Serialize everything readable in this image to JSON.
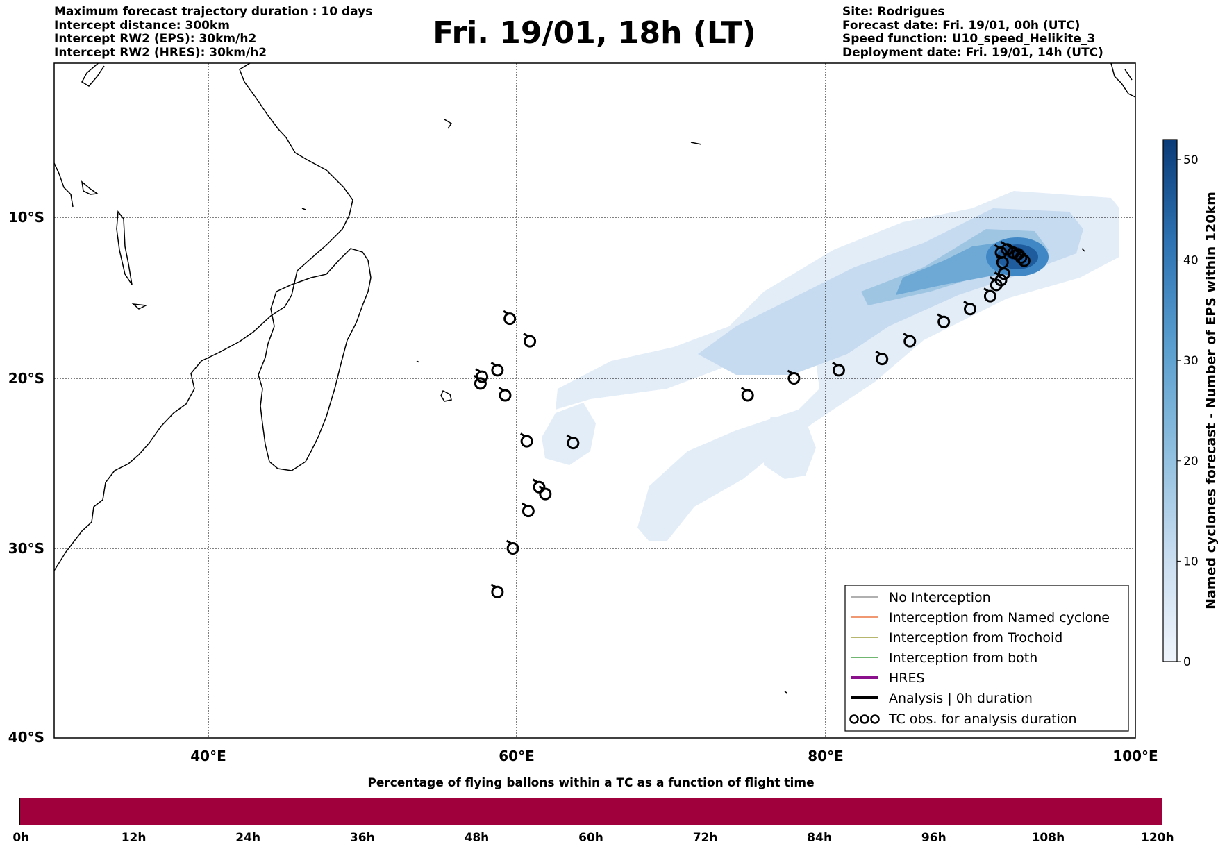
{
  "header_left": {
    "line1": "Maximum forecast trajectory duration : 10 days",
    "line2": "Intercept distance: 300km",
    "line3": "Intercept RW2 (EPS):  30km/h2",
    "line4": "Intercept RW2 (HRES): 30km/h2"
  },
  "title": "Fri. 19/01, 18h (LT)",
  "header_right": {
    "site": "Site: Rodrigues",
    "forecast": "Forecast date: Fri. 19/01, 00h (UTC)",
    "speed": "Speed function: U10_speed_Helikite_3",
    "deployment": "Deployment date: Fri. 19/01, 14h (UTC)"
  },
  "map": {
    "lon_range": [
      30,
      100
    ],
    "lat_range": [
      0,
      -40
    ],
    "grid": true,
    "lat_ticks": [
      "10°S",
      "20°S",
      "30°S",
      "40°S"
    ],
    "lon_ticks": [
      "40°E",
      "60°E",
      "80°E",
      "100°E"
    ],
    "cyclone_density_cmap": "Blues",
    "tc_obs_points": [
      [
        59.5,
        -16.3
      ],
      [
        60.8,
        -17.7
      ],
      [
        57.7,
        -19.9
      ],
      [
        57.6,
        -20.3
      ],
      [
        58.7,
        -19.5
      ],
      [
        59.2,
        -21.0
      ],
      [
        60.6,
        -23.7
      ],
      [
        63.6,
        -23.8
      ],
      [
        61.4,
        -26.4
      ],
      [
        61.8,
        -26.8
      ],
      [
        60.7,
        -27.8
      ],
      [
        59.7,
        -30.0
      ],
      [
        58.7,
        -32.3
      ],
      [
        74.9,
        -21.0
      ],
      [
        77.9,
        -20.0
      ],
      [
        80.8,
        -19.5
      ],
      [
        83.6,
        -18.8
      ],
      [
        85.4,
        -17.7
      ],
      [
        87.6,
        -16.5
      ],
      [
        89.3,
        -15.7
      ],
      [
        90.6,
        -14.9
      ],
      [
        91.0,
        -14.2
      ],
      [
        91.3,
        -13.9
      ],
      [
        91.5,
        -13.5
      ],
      [
        91.4,
        -12.8
      ],
      [
        91.3,
        -12.2
      ],
      [
        91.7,
        -12.0
      ],
      [
        92.1,
        -12.2
      ],
      [
        92.4,
        -12.3
      ],
      [
        92.6,
        -12.5
      ],
      [
        92.8,
        -12.7
      ]
    ]
  },
  "legend": {
    "items": [
      {
        "label": "No Interception",
        "color": "#808080",
        "width": 1.2
      },
      {
        "label": "Interception from Named cyclone",
        "color": "#e55a1c",
        "width": 1.2
      },
      {
        "label": "Interception from Trochoid",
        "color": "#8a8a18",
        "width": 1.2
      },
      {
        "label": "Interception from both",
        "color": "#1a8a1a",
        "width": 1.2
      },
      {
        "label": "HRES",
        "color": "#8b108b",
        "width": 4
      },
      {
        "label": "Analysis | 0h duration",
        "color": "#000000",
        "width": 4
      }
    ],
    "tc_label": "TC obs. for analysis duration"
  },
  "colorbar": {
    "label": "Named cyclones forecast - Number of EPS within 120km",
    "ticks": [
      "0",
      "10",
      "20",
      "30",
      "40",
      "50"
    ],
    "range": [
      0,
      52
    ]
  },
  "bottom_bar": {
    "title": "Percentage of flying ballons within a TC as a function of flight time",
    "ticks": [
      "0h",
      "12h",
      "24h",
      "36h",
      "48h",
      "60h",
      "72h",
      "84h",
      "96h",
      "108h",
      "120h"
    ],
    "color": "#a0003c"
  }
}
